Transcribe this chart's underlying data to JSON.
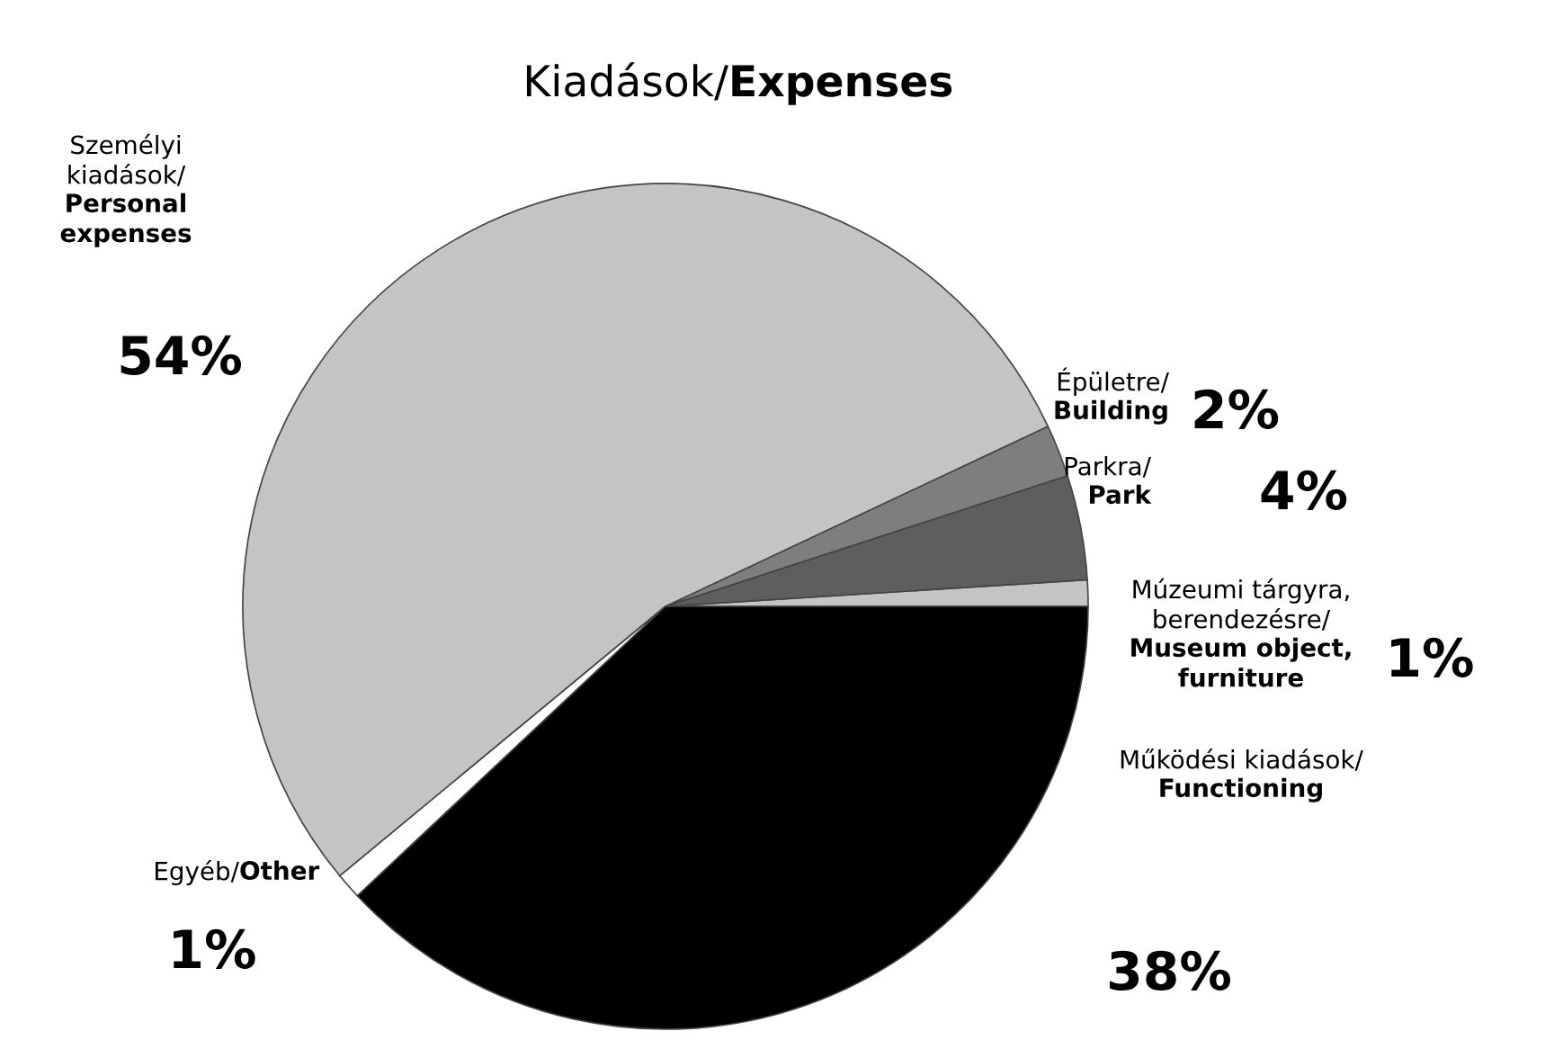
{
  "chart_data": {
    "type": "pie",
    "title": "Kiadások/Expenses",
    "categories": [
      "Múzeumi tárgyra, berendezésre/Museum object, furniture",
      "Parkra/Park",
      "Épületre/Building",
      "Személyi kiadások/Personal expenses",
      "Egyéb/Other",
      "Működési kiadások/Functioning"
    ],
    "values": [
      1,
      4,
      2,
      54,
      1,
      38
    ],
    "value_labels": [
      "1%",
      "4%",
      "2%",
      "54%",
      "1%",
      "38%"
    ],
    "colors": [
      "#c4c4c4",
      "#5e5e5e",
      "#7e7e7e",
      "#c4c4c4",
      "#ffffff",
      "#000000"
    ],
    "legend": false
  }
}
